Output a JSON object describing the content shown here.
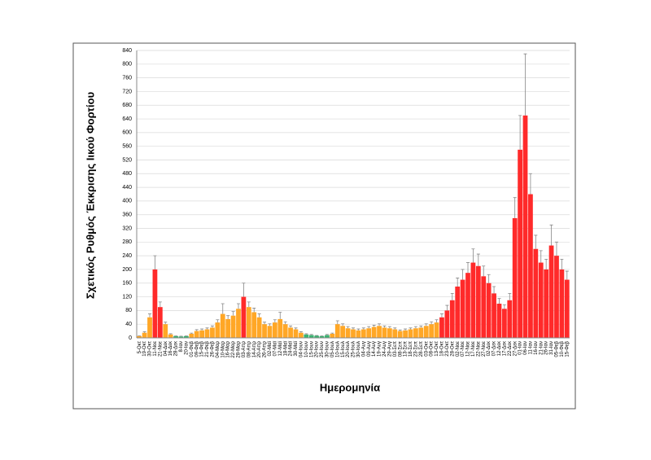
{
  "chart_data": {
    "type": "bar",
    "y_label": "Σχετικός Ρυθμός Έκκρισης Ιικού Φορτίου",
    "x_label": "Ημερομηνία",
    "categories": [
      "5-Οκτ",
      "19-Οκτ",
      "30-Οκτ",
      "11-Νοε",
      "21-Νοε",
      "04-Δεκ",
      "16-Δεκ",
      "28-Δεκ",
      "8-Ιαν",
      "20-Ιαν",
      "01-Φεβ",
      "09-Φεβ",
      "15-Φεβ",
      "21-Φεβ",
      "26-Φεβ",
      "04-Μαρ",
      "10-Μαρ",
      "16-Μαρ",
      "22-Μαρ",
      "28-Μαρ",
      "03-Απρ",
      "08-Απρ",
      "14-Απρ",
      "20-Απρ",
      "26-Απρ",
      "02-Μαϊ",
      "07-Μαϊ",
      "12-Μαϊ",
      "18-Μαϊ",
      "24-Μαϊ",
      "30-Μαϊ",
      "04-Ιουν",
      "10-Ιουν",
      "15-Ιουν",
      "20-Ιουν",
      "25-Ιουν",
      "30-Ιουν",
      "05-Ιουλ",
      "10-Ιουλ",
      "15-Ιουλ",
      "20-Ιουλ",
      "25-Ιουλ",
      "30-Ιουλ",
      "04-Αυγ",
      "09-Αυγ",
      "14-Αυγ",
      "19-Αυγ",
      "24-Αυγ",
      "29-Αυγ",
      "03-Σεπ",
      "08-Σεπ",
      "13-Σεπ",
      "18-Σεπ",
      "23-Σεπ",
      "28-Σεπ",
      "03-Οκτ",
      "08-Οκτ",
      "13-Οκτ",
      "18-Οκτ",
      "23-Οκτ",
      "28-Οκτ",
      "02-Νοε",
      "07-Νοε",
      "12-Νοε",
      "17-Νοε",
      "22-Νοε",
      "27-Νοε",
      "02-Δεκ",
      "07-Δεκ",
      "12-Δεκ",
      "17-Δεκ",
      "22-Δεκ",
      "27-Δεκ",
      "01-Ιαν",
      "06-Ιαν",
      "11-Ιαν",
      "16-Ιαν",
      "21-Ιαν",
      "26-Ιαν",
      "31-Ιαν",
      "05-Φεβ",
      "10-Φεβ",
      "15-Φεβ"
    ],
    "values": [
      5,
      15,
      60,
      200,
      90,
      40,
      10,
      5,
      4,
      5,
      12,
      20,
      22,
      25,
      30,
      45,
      70,
      55,
      65,
      85,
      120,
      90,
      75,
      60,
      40,
      35,
      45,
      55,
      40,
      30,
      25,
      15,
      10,
      8,
      6,
      5,
      8,
      12,
      40,
      35,
      28,
      25,
      22,
      25,
      28,
      32,
      35,
      30,
      28,
      25,
      20,
      22,
      25,
      28,
      30,
      35,
      40,
      45,
      60,
      80,
      110,
      150,
      170,
      190,
      220,
      210,
      180,
      160,
      130,
      100,
      85,
      110,
      350,
      550,
      650,
      420,
      260,
      220,
      200,
      270,
      240,
      200,
      170
    ],
    "errors": [
      1,
      3,
      10,
      40,
      15,
      6,
      2,
      1,
      1,
      1,
      2,
      4,
      4,
      4,
      5,
      8,
      30,
      10,
      12,
      15,
      40,
      15,
      12,
      10,
      6,
      6,
      8,
      20,
      7,
      5,
      4,
      3,
      2,
      2,
      1,
      1,
      2,
      2,
      10,
      6,
      5,
      4,
      4,
      4,
      5,
      5,
      6,
      5,
      5,
      4,
      3,
      4,
      4,
      5,
      5,
      6,
      7,
      8,
      10,
      15,
      20,
      25,
      30,
      30,
      40,
      35,
      30,
      25,
      20,
      15,
      12,
      20,
      60,
      100,
      180,
      60,
      40,
      35,
      30,
      60,
      40,
      30,
      25
    ],
    "colors": [
      "#ffa726",
      "#ffa726",
      "#ffa726",
      "#ff2a2a",
      "#ff2a2a",
      "#ffa726",
      "#ffa726",
      "#3cb371",
      "#3cb371",
      "#3cb371",
      "#ffa726",
      "#ffa726",
      "#ffa726",
      "#ffa726",
      "#ffa726",
      "#ffa726",
      "#ffa726",
      "#ffa726",
      "#ffa726",
      "#ffa726",
      "#ff2a2a",
      "#ffa726",
      "#ffa726",
      "#ffa726",
      "#ffa726",
      "#ffa726",
      "#ffa726",
      "#ffa726",
      "#ffa726",
      "#ffa726",
      "#ffa726",
      "#ffa726",
      "#3cb371",
      "#3cb371",
      "#3cb371",
      "#3cb371",
      "#3cb371",
      "#ffa726",
      "#ffa726",
      "#ffa726",
      "#ffa726",
      "#ffa726",
      "#ffa726",
      "#ffa726",
      "#ffa726",
      "#ffa726",
      "#ffa726",
      "#ffa726",
      "#ffa726",
      "#ffa726",
      "#ffa726",
      "#ffa726",
      "#ffa726",
      "#ffa726",
      "#ffa726",
      "#ffa726",
      "#ffa726",
      "#ffa726",
      "#ff2a2a",
      "#ff2a2a",
      "#ff2a2a",
      "#ff2a2a",
      "#ff2a2a",
      "#ff2a2a",
      "#ff2a2a",
      "#ff2a2a",
      "#ff2a2a",
      "#ff2a2a",
      "#ff2a2a",
      "#ff2a2a",
      "#ff2a2a",
      "#ff2a2a",
      "#ff2a2a",
      "#ff2a2a",
      "#ff2a2a",
      "#ff2a2a",
      "#ff2a2a",
      "#ff2a2a",
      "#ff2a2a",
      "#ff2a2a",
      "#ff2a2a",
      "#ff2a2a",
      "#ff2a2a"
    ],
    "error_color": "#888888",
    "ylim": [
      0,
      840
    ],
    "yticks": [
      0,
      40,
      80,
      120,
      160,
      200,
      240,
      280,
      320,
      360,
      400,
      440,
      480,
      520,
      560,
      600,
      640,
      680,
      720,
      760,
      800,
      840
    ],
    "grid": true
  }
}
